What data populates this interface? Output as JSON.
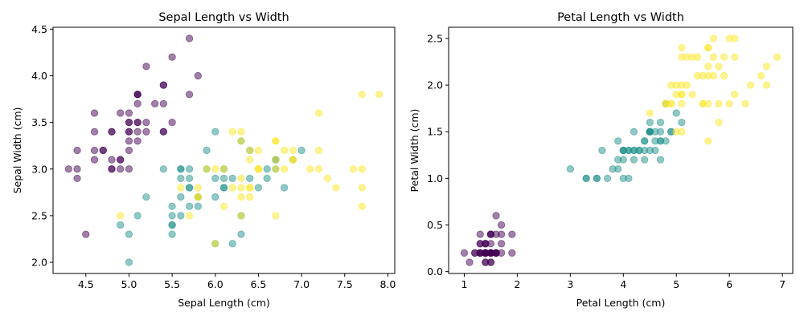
{
  "colors": {
    "class_0": "#440154",
    "class_1": "#21918c",
    "class_2": "#fde725"
  },
  "marker_alpha": 0.5,
  "chart_data": [
    {
      "type": "scatter",
      "title": "Sepal Length vs Width",
      "xlabel": "Sepal Length (cm)",
      "ylabel": "Sepal Width (cm)",
      "xlim": [
        4.12,
        8.08
      ],
      "ylim": [
        1.88,
        4.52
      ],
      "xticks": [
        4.5,
        5.0,
        5.5,
        6.0,
        6.5,
        7.0,
        7.5,
        8.0
      ],
      "xtick_labels": [
        "4.5",
        "5.0",
        "5.5",
        "6.0",
        "6.5",
        "7.0",
        "7.5",
        "8.0"
      ],
      "yticks": [
        2.0,
        2.5,
        3.0,
        3.5,
        4.0,
        4.5
      ],
      "ytick_labels": [
        "2.0",
        "2.5",
        "3.0",
        "3.5",
        "4.0",
        "4.5"
      ],
      "grid": false,
      "legend": "none",
      "series": [
        {
          "color_key": "class_0",
          "x": [
            5.1,
            4.9,
            4.7,
            4.6,
            5.0,
            5.4,
            4.6,
            5.0,
            4.4,
            4.9,
            5.4,
            4.8,
            4.8,
            4.3,
            5.8,
            5.7,
            5.4,
            5.1,
            5.7,
            5.1,
            5.4,
            5.1,
            4.6,
            5.1,
            4.8,
            5.0,
            5.0,
            5.2,
            5.2,
            4.7,
            4.8,
            5.4,
            5.2,
            5.5,
            4.9,
            5.0,
            5.5,
            4.9,
            4.4,
            5.1,
            5.0,
            4.5,
            4.4,
            5.0,
            5.1,
            4.8,
            5.1,
            4.6,
            5.3,
            5.0
          ],
          "y": [
            3.5,
            3.0,
            3.2,
            3.1,
            3.6,
            3.9,
            3.4,
            3.4,
            2.9,
            3.1,
            3.7,
            3.4,
            3.0,
            3.0,
            4.0,
            4.4,
            3.9,
            3.5,
            3.8,
            3.8,
            3.4,
            3.7,
            3.6,
            3.3,
            3.4,
            3.0,
            3.4,
            3.5,
            3.4,
            3.2,
            3.1,
            3.4,
            4.1,
            4.2,
            3.1,
            3.2,
            3.5,
            3.6,
            3.0,
            3.4,
            3.5,
            2.3,
            3.2,
            3.5,
            3.8,
            3.0,
            3.8,
            3.2,
            3.7,
            3.3
          ]
        },
        {
          "color_key": "class_1",
          "x": [
            7.0,
            6.4,
            6.9,
            5.5,
            6.5,
            5.7,
            6.3,
            4.9,
            6.6,
            5.2,
            5.0,
            5.9,
            6.0,
            6.1,
            5.6,
            6.7,
            5.6,
            5.8,
            6.2,
            5.6,
            5.9,
            6.1,
            6.3,
            6.1,
            6.4,
            6.6,
            6.8,
            6.7,
            6.0,
            5.7,
            5.5,
            5.5,
            5.8,
            6.0,
            5.4,
            6.0,
            6.7,
            6.3,
            5.6,
            5.5,
            5.5,
            6.1,
            5.8,
            5.0,
            5.6,
            5.7,
            5.7,
            6.2,
            5.1,
            5.7
          ],
          "y": [
            3.2,
            3.2,
            3.1,
            2.3,
            2.8,
            2.8,
            3.3,
            2.4,
            2.9,
            2.7,
            2.0,
            3.0,
            2.2,
            2.9,
            2.9,
            3.1,
            3.0,
            2.7,
            2.2,
            2.5,
            3.2,
            2.8,
            2.5,
            2.8,
            2.9,
            3.0,
            2.8,
            3.0,
            2.9,
            2.6,
            2.4,
            2.4,
            2.7,
            2.7,
            3.0,
            3.4,
            3.1,
            2.3,
            3.0,
            2.5,
            2.6,
            3.0,
            2.6,
            2.3,
            2.7,
            3.0,
            2.9,
            2.9,
            2.5,
            2.8
          ]
        },
        {
          "color_key": "class_2",
          "x": [
            6.3,
            5.8,
            7.1,
            6.3,
            6.5,
            7.6,
            4.9,
            7.3,
            6.7,
            7.2,
            6.5,
            6.4,
            6.8,
            5.7,
            5.8,
            6.4,
            6.5,
            7.7,
            7.7,
            6.0,
            6.9,
            5.6,
            7.7,
            6.3,
            6.7,
            7.2,
            6.2,
            6.1,
            6.4,
            7.2,
            7.4,
            7.9,
            6.4,
            6.3,
            6.1,
            7.7,
            6.3,
            6.4,
            6.0,
            6.9,
            6.7,
            6.9,
            5.8,
            6.8,
            6.7,
            6.7,
            6.3,
            6.5,
            6.2,
            5.9
          ],
          "y": [
            3.3,
            2.7,
            3.0,
            2.9,
            3.0,
            3.0,
            2.5,
            2.9,
            2.5,
            3.6,
            3.2,
            2.7,
            3.0,
            2.5,
            2.8,
            3.2,
            3.0,
            3.8,
            2.6,
            2.2,
            3.2,
            2.8,
            2.8,
            2.7,
            3.3,
            3.2,
            2.8,
            3.0,
            2.8,
            3.0,
            2.8,
            3.8,
            2.8,
            2.8,
            2.6,
            3.0,
            3.4,
            3.1,
            3.0,
            3.1,
            3.1,
            3.1,
            2.7,
            3.2,
            3.3,
            3.0,
            2.5,
            3.0,
            3.4,
            3.0
          ]
        }
      ]
    },
    {
      "type": "scatter",
      "title": "Petal Length vs Width",
      "xlabel": "Petal Length (cm)",
      "ylabel": "Petal Width (cm)",
      "xlim": [
        0.705,
        7.195
      ],
      "ylim": [
        -0.02,
        2.62
      ],
      "xticks": [
        1,
        2,
        3,
        4,
        5,
        6,
        7
      ],
      "xtick_labels": [
        "1",
        "2",
        "3",
        "4",
        "5",
        "6",
        "7"
      ],
      "yticks": [
        0.0,
        0.5,
        1.0,
        1.5,
        2.0,
        2.5
      ],
      "ytick_labels": [
        "0.0",
        "0.5",
        "1.0",
        "1.5",
        "2.0",
        "2.5"
      ],
      "grid": false,
      "legend": "none",
      "series": [
        {
          "color_key": "class_0",
          "x": [
            1.4,
            1.4,
            1.3,
            1.5,
            1.4,
            1.7,
            1.4,
            1.5,
            1.4,
            1.5,
            1.5,
            1.6,
            1.4,
            1.1,
            1.2,
            1.5,
            1.3,
            1.4,
            1.7,
            1.5,
            1.7,
            1.5,
            1.0,
            1.7,
            1.9,
            1.6,
            1.6,
            1.5,
            1.4,
            1.6,
            1.6,
            1.5,
            1.5,
            1.4,
            1.5,
            1.2,
            1.3,
            1.4,
            1.3,
            1.5,
            1.3,
            1.3,
            1.3,
            1.6,
            1.9,
            1.4,
            1.6,
            1.4,
            1.5,
            1.4
          ],
          "y": [
            0.2,
            0.2,
            0.2,
            0.2,
            0.2,
            0.4,
            0.3,
            0.2,
            0.2,
            0.1,
            0.2,
            0.2,
            0.1,
            0.1,
            0.2,
            0.4,
            0.4,
            0.3,
            0.3,
            0.3,
            0.2,
            0.4,
            0.2,
            0.5,
            0.2,
            0.2,
            0.4,
            0.2,
            0.2,
            0.2,
            0.2,
            0.4,
            0.1,
            0.2,
            0.2,
            0.2,
            0.2,
            0.1,
            0.2,
            0.2,
            0.3,
            0.3,
            0.2,
            0.6,
            0.4,
            0.3,
            0.2,
            0.2,
            0.2,
            0.2
          ]
        },
        {
          "color_key": "class_1",
          "x": [
            4.7,
            4.5,
            4.9,
            4.0,
            4.6,
            4.5,
            4.7,
            3.3,
            4.6,
            3.9,
            3.5,
            4.2,
            4.0,
            4.7,
            3.6,
            4.4,
            4.5,
            4.1,
            4.5,
            3.9,
            4.8,
            4.0,
            4.9,
            4.7,
            4.3,
            4.4,
            4.8,
            5.0,
            4.5,
            3.5,
            3.8,
            3.7,
            3.9,
            5.1,
            4.5,
            4.5,
            4.7,
            4.4,
            4.1,
            4.0,
            4.4,
            4.6,
            4.0,
            3.3,
            4.2,
            4.2,
            4.2,
            4.3,
            3.0,
            4.1
          ],
          "y": [
            1.4,
            1.5,
            1.5,
            1.3,
            1.5,
            1.3,
            1.6,
            1.0,
            1.3,
            1.4,
            1.0,
            1.5,
            1.0,
            1.4,
            1.3,
            1.4,
            1.5,
            1.0,
            1.5,
            1.1,
            1.8,
            1.3,
            1.5,
            1.2,
            1.3,
            1.4,
            1.4,
            1.7,
            1.5,
            1.0,
            1.1,
            1.0,
            1.2,
            1.6,
            1.5,
            1.6,
            1.5,
            1.3,
            1.3,
            1.3,
            1.2,
            1.4,
            1.2,
            1.0,
            1.3,
            1.2,
            1.3,
            1.3,
            1.1,
            1.3
          ]
        },
        {
          "color_key": "class_2",
          "x": [
            6.0,
            5.1,
            5.9,
            5.6,
            5.8,
            6.6,
            4.5,
            6.3,
            5.8,
            6.1,
            5.1,
            5.3,
            5.5,
            5.0,
            5.1,
            5.3,
            5.5,
            6.7,
            6.9,
            5.0,
            5.7,
            4.9,
            6.7,
            4.9,
            5.7,
            6.0,
            4.8,
            4.9,
            5.6,
            5.8,
            6.1,
            6.4,
            5.6,
            5.1,
            5.6,
            6.1,
            5.6,
            5.5,
            4.8,
            5.4,
            5.6,
            5.1,
            5.1,
            5.9,
            5.7,
            5.2,
            5.0,
            5.2,
            5.4,
            5.1
          ],
          "y": [
            2.5,
            1.9,
            2.1,
            1.8,
            2.2,
            2.1,
            1.7,
            1.8,
            1.8,
            2.5,
            2.0,
            1.9,
            2.1,
            2.0,
            2.4,
            2.3,
            1.8,
            2.2,
            2.3,
            1.5,
            2.3,
            2.0,
            2.0,
            1.8,
            2.1,
            1.8,
            1.8,
            1.8,
            2.1,
            1.6,
            1.9,
            2.0,
            2.2,
            1.5,
            1.4,
            2.3,
            2.4,
            1.8,
            1.8,
            2.1,
            2.4,
            2.3,
            1.9,
            2.3,
            2.5,
            2.3,
            1.9,
            2.0,
            2.3,
            1.8
          ]
        }
      ]
    }
  ]
}
